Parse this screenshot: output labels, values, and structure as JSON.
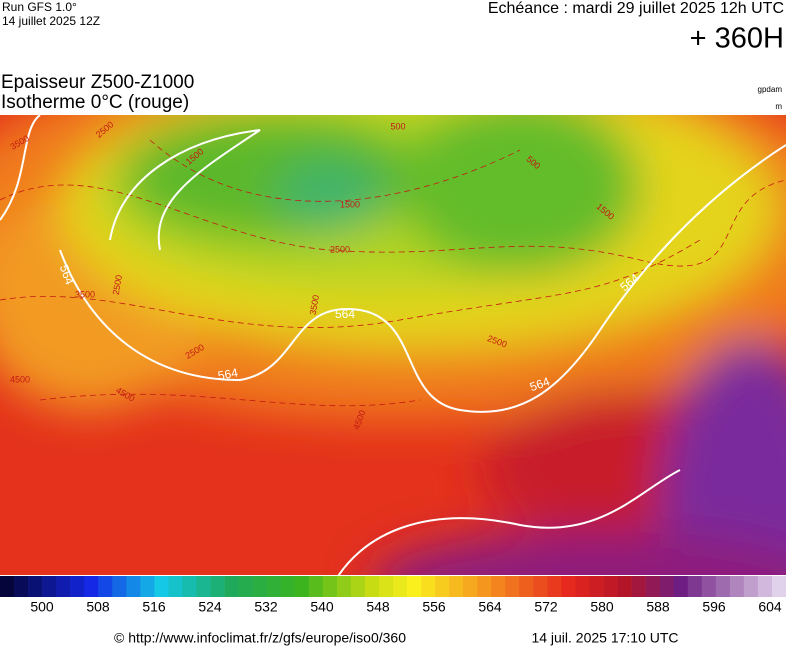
{
  "header": {
    "run": "Run GFS 1.0°",
    "run_date": "14 juillet 2025 12Z",
    "valid": "Echéance : mardi 29 juillet 2025 12h UTC",
    "lead": "+ 360H",
    "title_line1": "Epaisseur Z500-Z1000",
    "title_line2": "Isotherme 0°C (rouge)",
    "unit1": "gpdam",
    "unit2": "m"
  },
  "map": {
    "contour_labels": [
      "564",
      "564",
      "564",
      "564",
      "564",
      "2500",
      "2500",
      "2500",
      "2500",
      "2500",
      "3500",
      "3500",
      "3500",
      "1500",
      "1500",
      "1500",
      "4500",
      "4500",
      "4500",
      "500",
      "500"
    ]
  },
  "colorbar": {
    "labels": [
      500,
      508,
      516,
      524,
      532,
      540,
      548,
      556,
      564,
      572,
      580,
      588,
      596,
      604
    ]
  },
  "footer": {
    "url": "© http://www.infoclimat.fr/z/gfs/europe/iso0/360",
    "generated": "14 juil. 2025 17:10 UTC"
  }
}
